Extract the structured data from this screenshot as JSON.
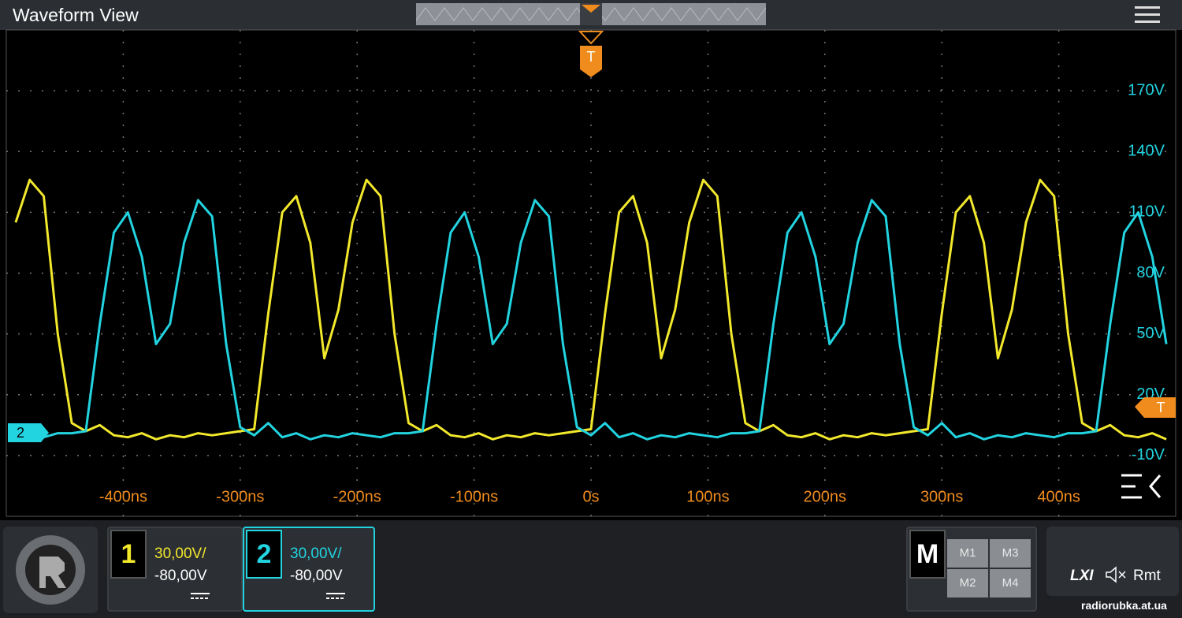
{
  "header": {
    "title": "Waveform View"
  },
  "chart_data": {
    "type": "line",
    "x": [
      -492,
      -480,
      -468,
      -456,
      -444,
      -432,
      -420,
      -408,
      -396,
      -384,
      -372,
      -360,
      -348,
      -336,
      -324,
      -312,
      -300,
      -288,
      -276,
      -264,
      -252,
      -240,
      -228,
      -216,
      -204,
      -192,
      -180,
      -168,
      -156,
      -144,
      -132,
      -120,
      -108,
      -96,
      -84,
      -72,
      -60,
      -48,
      -36,
      -24,
      -12,
      0,
      12,
      24,
      36,
      48,
      60,
      72,
      84,
      96,
      108,
      120,
      132,
      144,
      156,
      168,
      180,
      192,
      204,
      216,
      228,
      240,
      252,
      264,
      276,
      288,
      300,
      312,
      324,
      336,
      348,
      360,
      372,
      384,
      396,
      408,
      420,
      432,
      444,
      456,
      468,
      480,
      492
    ],
    "series": [
      {
        "name": "1",
        "color": "#f2e82c",
        "values": [
          105,
          126,
          118,
          50,
          6,
          2,
          5,
          0,
          -1,
          1,
          -2,
          0,
          -1,
          1,
          0,
          1,
          2,
          3,
          60,
          110,
          118,
          95,
          38,
          62,
          105,
          126,
          118,
          50,
          6,
          2,
          5,
          0,
          -1,
          1,
          -2,
          0,
          -1,
          1,
          0,
          1,
          2,
          3,
          60,
          110,
          118,
          95,
          38,
          62,
          105,
          126,
          118,
          50,
          6,
          2,
          5,
          0,
          -1,
          1,
          -2,
          0,
          -1,
          1,
          0,
          1,
          2,
          3,
          60,
          110,
          118,
          95,
          38,
          62,
          105,
          126,
          118,
          50,
          6,
          2,
          5,
          0,
          -1,
          1,
          -2
        ]
      },
      {
        "name": "2",
        "color": "#22d3e0",
        "values": [
          1,
          0,
          -1,
          1,
          1,
          2,
          55,
          100,
          110,
          88,
          45,
          55,
          95,
          116,
          108,
          45,
          4,
          0,
          6,
          -1,
          1,
          -2,
          0,
          -1,
          1,
          0,
          -1,
          1,
          1,
          2,
          55,
          100,
          110,
          88,
          45,
          55,
          95,
          116,
          108,
          45,
          4,
          0,
          6,
          -1,
          1,
          -2,
          0,
          -1,
          1,
          0,
          -1,
          1,
          1,
          2,
          55,
          100,
          110,
          88,
          45,
          55,
          95,
          116,
          108,
          45,
          4,
          0,
          6,
          -1,
          1,
          -2,
          0,
          -1,
          1,
          0,
          -1,
          1,
          1,
          2,
          55,
          100,
          110,
          88,
          45
        ]
      }
    ],
    "xlim": [
      -500,
      500
    ],
    "xticks": [
      {
        "value": -400,
        "label": "-400ns"
      },
      {
        "value": -300,
        "label": "-300ns"
      },
      {
        "value": -200,
        "label": "-200ns"
      },
      {
        "value": -100,
        "label": "-100ns"
      },
      {
        "value": 0,
        "label": "0s"
      },
      {
        "value": 100,
        "label": "100ns"
      },
      {
        "value": 200,
        "label": "200ns"
      },
      {
        "value": 300,
        "label": "300ns"
      },
      {
        "value": 400,
        "label": "400ns"
      }
    ],
    "ylim": [
      -40,
      200
    ],
    "yticks": [
      {
        "value": -10,
        "label": "-10V"
      },
      {
        "value": 20,
        "label": "20V"
      },
      {
        "value": 50,
        "label": "50V"
      },
      {
        "value": 80,
        "label": "80V"
      },
      {
        "value": 110,
        "label": "110V"
      },
      {
        "value": 140,
        "label": "140V"
      },
      {
        "value": 170,
        "label": "170V"
      }
    ],
    "grid": true,
    "xtick_color": "#f08c1e",
    "ytick_color": "#22d3e0",
    "trigger_label": "T"
  },
  "channels": [
    {
      "scale": "30,00V/",
      "offset": "-80,00V"
    },
    {
      "scale": "30,00V/",
      "offset": "-80,00V"
    }
  ],
  "math": {
    "label": "M",
    "slots": [
      "M1",
      "M3",
      "M2",
      "M4"
    ]
  },
  "status": {
    "lxi": "LXI",
    "remote": "Rmt"
  },
  "watermark": "radiorubka.at.ua"
}
